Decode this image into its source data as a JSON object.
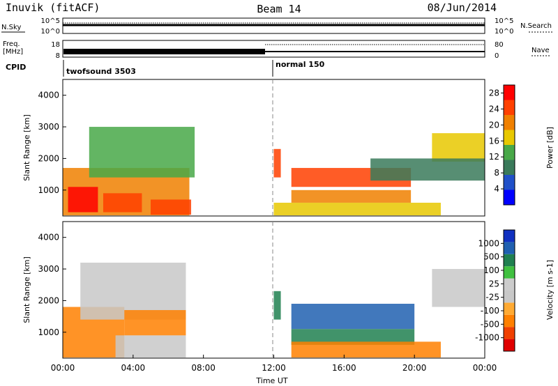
{
  "header": {
    "station": "Inuvik (fitACF)",
    "beam": "Beam 14",
    "date": "08/Jun/2014"
  },
  "noise_panel": {
    "left_label": "N.Sky",
    "left_ticks": [
      "10^5",
      "10^0"
    ],
    "right_ticks": [
      "10^5",
      "10^0"
    ],
    "right_label": "N.Search"
  },
  "freq_panel": {
    "left_label_1": "Freq.",
    "left_label_2": "[MHz]",
    "left_ticks": [
      "18",
      "8"
    ],
    "right_ticks": [
      "80",
      "0"
    ],
    "right_label": "Nave"
  },
  "cpid": {
    "label": "CPID",
    "modes": [
      {
        "name": "twofsound 3503",
        "start_hour": 0
      },
      {
        "name": "normal 150",
        "start_hour": 12
      }
    ]
  },
  "x_axis": {
    "label": "Time UT",
    "ticks": [
      "00:00",
      "04:00",
      "08:00",
      "12:00",
      "16:00",
      "20:00",
      "00:00"
    ],
    "range_hours": [
      0,
      24
    ]
  },
  "colors": {
    "power_scale": [
      "#0000ff",
      "#2050c8",
      "#3a7a5a",
      "#48a848",
      "#e8c800",
      "#f08000",
      "#ff4000",
      "#ff0000"
    ],
    "velocity_scale": [
      "#e00000",
      "#f04000",
      "#ff8000",
      "#ffaa33",
      "#c8c8c8",
      "#cccccc",
      "#40c040",
      "#208050",
      "#2060b0",
      "#1030c0"
    ]
  },
  "chart_data": [
    {
      "type": "heatmap",
      "title": "Power",
      "ylabel": "Slant Range [km]",
      "xlabel": "",
      "ylim": [
        180,
        4500
      ],
      "y_ticks": [
        1000,
        2000,
        3000,
        4000
      ],
      "colorbar": {
        "label": "Power [dB]",
        "range": [
          0,
          30
        ],
        "ticks": [
          4,
          8,
          12,
          16,
          20,
          24,
          28
        ]
      },
      "patches": [
        {
          "t0": 0.0,
          "t1": 7.2,
          "r0": 200,
          "r1": 1700,
          "level": 0.75
        },
        {
          "t0": 0.3,
          "t1": 2.0,
          "r0": 300,
          "r1": 1100,
          "level": 0.95
        },
        {
          "t0": 2.3,
          "t1": 4.5,
          "r0": 300,
          "r1": 900,
          "level": 0.9
        },
        {
          "t0": 5.0,
          "t1": 7.3,
          "r0": 220,
          "r1": 700,
          "level": 0.85
        },
        {
          "t0": 1.5,
          "t1": 7.5,
          "r0": 1400,
          "r1": 3000,
          "level": 0.45
        },
        {
          "t0": 12.0,
          "t1": 12.4,
          "r0": 1400,
          "r1": 2300,
          "level": 0.85
        },
        {
          "t0": 13.0,
          "t1": 19.8,
          "r0": 1100,
          "r1": 1700,
          "level": 0.9
        },
        {
          "t0": 13.0,
          "t1": 19.8,
          "r0": 600,
          "r1": 1000,
          "level": 0.75
        },
        {
          "t0": 12.0,
          "t1": 21.5,
          "r0": 200,
          "r1": 600,
          "level": 0.6
        },
        {
          "t0": 21.0,
          "t1": 24.0,
          "r0": 1900,
          "r1": 2800,
          "level": 0.55
        },
        {
          "t0": 17.5,
          "t1": 24.0,
          "r0": 1300,
          "r1": 2000,
          "level": 0.3
        }
      ]
    },
    {
      "type": "heatmap",
      "title": "Velocity",
      "ylabel": "Slant Range [km]",
      "xlabel": "Time UT",
      "ylim": [
        180,
        4500
      ],
      "y_ticks": [
        1000,
        2000,
        3000,
        4000
      ],
      "colorbar": {
        "label": "Velocity [m s-1]",
        "range": [
          -1200,
          1200
        ],
        "ticks": [
          1000,
          500,
          100,
          25,
          -25,
          -100,
          -500,
          -1000
        ]
      },
      "patches": [
        {
          "t0": 0.0,
          "t1": 3.5,
          "r0": 200,
          "r1": 1800,
          "level": -300
        },
        {
          "t0": 3.0,
          "t1": 7.0,
          "r0": 200,
          "r1": 900,
          "level": 0
        },
        {
          "t0": 1.0,
          "t1": 7.0,
          "r0": 1400,
          "r1": 3200,
          "level": 0
        },
        {
          "t0": 3.5,
          "t1": 7.0,
          "r0": 900,
          "r1": 1700,
          "level": -200
        },
        {
          "t0": 12.0,
          "t1": 12.4,
          "r0": 1400,
          "r1": 2300,
          "level": 200
        },
        {
          "t0": 13.0,
          "t1": 20.0,
          "r0": 1100,
          "r1": 1900,
          "level": 900
        },
        {
          "t0": 13.0,
          "t1": 20.0,
          "r0": 600,
          "r1": 1100,
          "level": 150
        },
        {
          "t0": 13.0,
          "t1": 21.5,
          "r0": 200,
          "r1": 700,
          "level": -400
        },
        {
          "t0": 21.0,
          "t1": 24.0,
          "r0": 1800,
          "r1": 3000,
          "level": 0
        }
      ]
    }
  ]
}
